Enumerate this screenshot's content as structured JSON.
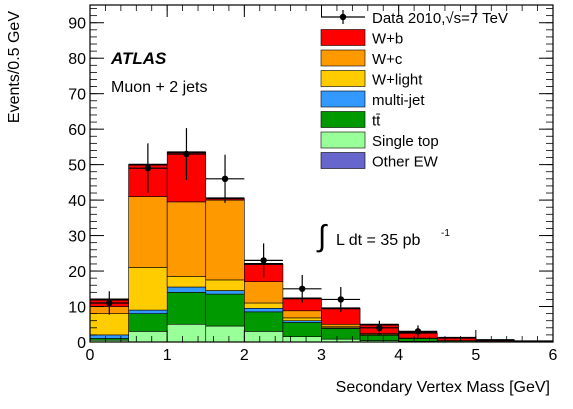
{
  "chart_data": {
    "type": "bar",
    "stacked": true,
    "atlas_label": "ATLAS",
    "channel_label": "Muon + 2 jets",
    "lumi_text": "L dt = 35 pb",
    "lumi_exponent": "-1",
    "xlabel": "Secondary Vertex Mass [GeV]",
    "ylabel": "Events/0.5 GeV",
    "xlim": [
      0,
      6
    ],
    "ylim": [
      0,
      95
    ],
    "x_ticks": [
      "0",
      "1",
      "2",
      "3",
      "4",
      "5",
      "6"
    ],
    "y_ticks": [
      "0",
      "10",
      "20",
      "30",
      "40",
      "50",
      "60",
      "70",
      "80",
      "90"
    ],
    "bin_edges": [
      0,
      0.5,
      1.0,
      1.5,
      2.0,
      2.5,
      3.0,
      3.5,
      4.0,
      4.5,
      5.0,
      5.5,
      6.0
    ],
    "legend_position": "top-right",
    "data_legend": "Data 2010,",
    "data_legend_sqrt": "√s=7 TeV",
    "series": [
      {
        "name": "Single top",
        "color": "#99ff99",
        "values": [
          0.5,
          3.0,
          5.0,
          4.5,
          3.0,
          1.5,
          0.8,
          0.4,
          0.2,
          0.1,
          0.05,
          0
        ]
      },
      {
        "name": "tt̄",
        "color": "#009900",
        "values": [
          0.5,
          5.0,
          9.0,
          9.0,
          5.5,
          4.0,
          3.0,
          1.5,
          0.8,
          0.3,
          0.1,
          0
        ]
      },
      {
        "name": "multi-jet",
        "color": "#3399ff",
        "values": [
          1.0,
          1.0,
          1.5,
          1.0,
          1.0,
          0.5,
          0.2,
          0.1,
          0,
          0,
          0,
          0
        ]
      },
      {
        "name": "W+light",
        "color": "#ffcc00",
        "values": [
          6.0,
          12.0,
          3.0,
          3.0,
          1.5,
          0.8,
          0.3,
          0.1,
          0,
          0,
          0,
          0
        ]
      },
      {
        "name": "W+c",
        "color": "#ff9900",
        "values": [
          2.0,
          20.0,
          21.0,
          22.5,
          6.0,
          2.0,
          0.7,
          0.3,
          0.1,
          0,
          0,
          0
        ]
      },
      {
        "name": "W+b",
        "color": "#ff0000",
        "values": [
          1.8,
          9.0,
          14.0,
          0.5,
          5.0,
          3.5,
          4.5,
          2.5,
          1.5,
          0.8,
          0.4,
          0.2
        ]
      },
      {
        "name": "Other EW",
        "color": "#6666cc",
        "values": [
          0.2,
          0,
          0,
          0,
          0,
          0,
          0,
          0,
          0,
          0,
          0,
          0
        ]
      }
    ],
    "legend_order": [
      "W+b",
      "W+c",
      "W+light",
      "multi-jet",
      "tt̄",
      "Single top",
      "Other EW"
    ],
    "data_points": {
      "x": [
        0.25,
        0.75,
        1.25,
        1.75,
        2.25,
        2.75,
        3.25,
        3.75,
        4.25
      ],
      "y": [
        11,
        49,
        53,
        46,
        23,
        15,
        12,
        4,
        3
      ],
      "yerr": [
        3.3,
        7.0,
        7.3,
        6.8,
        4.8,
        3.9,
        3.5,
        2.0,
        1.7
      ]
    }
  }
}
